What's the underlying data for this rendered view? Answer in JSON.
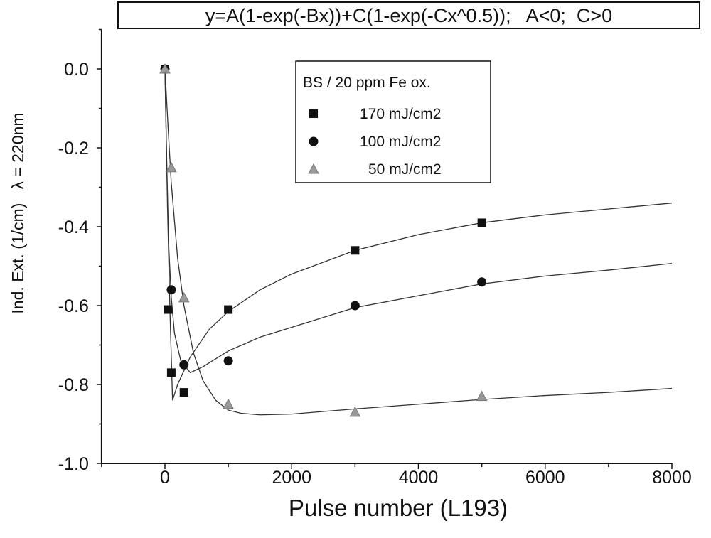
{
  "chart_data": {
    "type": "scatter",
    "title": "y=A(1-exp(-Bx))+C(1-exp(-Cx^0.5));   A<0;  C>0",
    "xlabel": "Pulse number (L193)",
    "ylabel": "Ind. Ext. (1/cm)   λ = 220nm",
    "xlim": [
      -1000,
      8000
    ],
    "ylim": [
      -1.0,
      0.1
    ],
    "xticks": [
      0,
      2000,
      4000,
      6000,
      8000
    ],
    "xtick_labels": [
      "0",
      "2000",
      "4000",
      "6000",
      "8000"
    ],
    "yticks": [
      0.0,
      -0.2,
      -0.4,
      -0.6,
      -0.8,
      -1.0
    ],
    "ytick_labels": [
      "0.0",
      "-0.2",
      "-0.4",
      "-0.6",
      "-0.8",
      "-1.0"
    ],
    "grid": false,
    "legend": {
      "title": "BS / 20 ppm Fe ox.",
      "position": "top-center"
    },
    "series": [
      {
        "name": "170 mJ/cm2",
        "marker": "square",
        "color": "#111111",
        "x": [
          0,
          50,
          100,
          300,
          1000,
          3000,
          5000
        ],
        "y": [
          0.0,
          -0.61,
          -0.77,
          -0.82,
          -0.61,
          -0.46,
          -0.39
        ],
        "fit_x": [
          0,
          40,
          80,
          120,
          200,
          400,
          700,
          1000,
          1500,
          2000,
          3000,
          4000,
          5000,
          6000,
          7000,
          8000
        ],
        "fit_y": [
          0.0,
          -0.35,
          -0.62,
          -0.84,
          -0.8,
          -0.73,
          -0.66,
          -0.615,
          -0.56,
          -0.52,
          -0.46,
          -0.42,
          -0.39,
          -0.37,
          -0.355,
          -0.34
        ]
      },
      {
        "name": "100 mJ/cm2",
        "marker": "circle",
        "color": "#111111",
        "x": [
          0,
          100,
          300,
          1000,
          3000,
          5000
        ],
        "y": [
          0.0,
          -0.56,
          -0.75,
          -0.74,
          -0.6,
          -0.54
        ],
        "fit_x": [
          0,
          30,
          60,
          100,
          150,
          250,
          400,
          600,
          1000,
          1500,
          2000,
          3000,
          4000,
          5000,
          6000,
          7000,
          8000
        ],
        "fit_y": [
          0.0,
          -0.25,
          -0.45,
          -0.58,
          -0.67,
          -0.74,
          -0.77,
          -0.755,
          -0.715,
          -0.68,
          -0.655,
          -0.605,
          -0.575,
          -0.545,
          -0.525,
          -0.51,
          -0.493
        ]
      },
      {
        "name": "50 mJ/cm2",
        "marker": "triangle",
        "color": "#999999",
        "x": [
          0,
          100,
          300,
          1000,
          3000,
          5000
        ],
        "y": [
          0.0,
          -0.25,
          -0.58,
          -0.85,
          -0.87,
          -0.83
        ],
        "fit_x": [
          0,
          50,
          100,
          200,
          300,
          450,
          600,
          800,
          1000,
          1200,
          1500,
          2000,
          3000,
          4000,
          5000,
          6000,
          7000,
          8000
        ],
        "fit_y": [
          0.0,
          -0.15,
          -0.29,
          -0.48,
          -0.6,
          -0.72,
          -0.79,
          -0.84,
          -0.865,
          -0.873,
          -0.877,
          -0.875,
          -0.862,
          -0.85,
          -0.838,
          -0.828,
          -0.82,
          -0.81
        ]
      }
    ]
  }
}
